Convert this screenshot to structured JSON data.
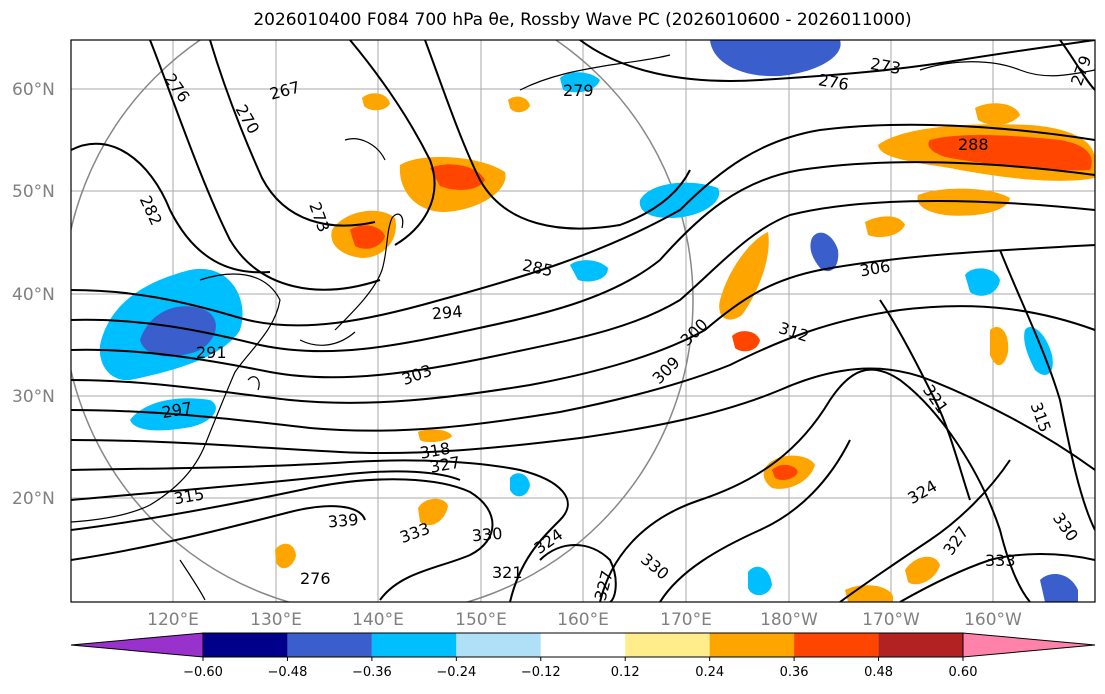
{
  "title": "2026010400 F084 700 hPa θe, Rossby Wave PC (2026010600 - 2026011000)",
  "lat_labels": [
    "60°N",
    "50°N",
    "40°N",
    "30°N",
    "20°N"
  ],
  "lon_labels": [
    "120°E",
    "130°E",
    "140°E",
    "150°E",
    "160°E",
    "170°E",
    "180°W",
    "170°W",
    "160°W"
  ],
  "colorbar": {
    "ticks": [
      "−0.60",
      "−0.48",
      "−0.36",
      "−0.24",
      "−0.12",
      "0.12",
      "0.24",
      "0.36",
      "0.48",
      "0.60"
    ],
    "colors": [
      "#9932cc",
      "#00008b",
      "#3a5fcd",
      "#00bfff",
      "#b0e0f8",
      "#ffffff",
      "#ffec8b",
      "#ffa500",
      "#ff4500",
      "#b22222",
      "#ff82ab"
    ]
  },
  "contour_labels": [
    "276",
    "270",
    "267",
    "279",
    "276",
    "273",
    "279",
    "282",
    "273",
    "285",
    "306",
    "294",
    "291",
    "303",
    "300",
    "309",
    "312",
    "321",
    "315",
    "297",
    "318",
    "327",
    "324",
    "315",
    "339",
    "333",
    "330",
    "324",
    "330",
    "321",
    "327",
    "330",
    "333",
    "327",
    "288"
  ]
}
